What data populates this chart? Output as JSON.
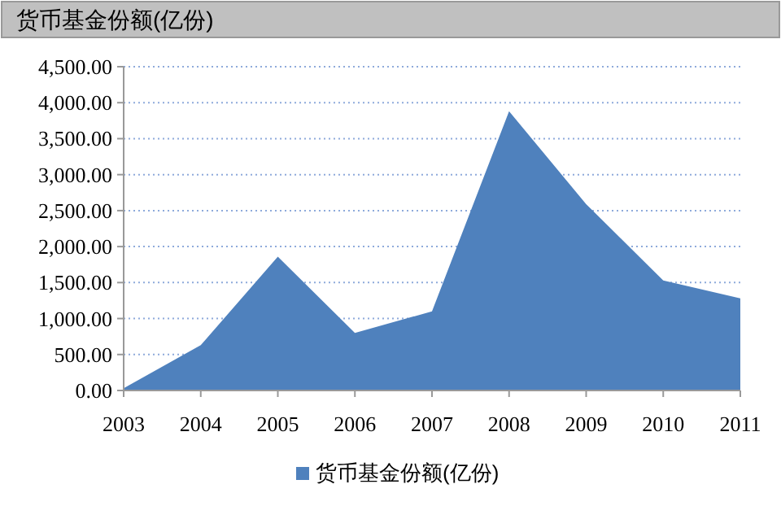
{
  "chart_data": {
    "type": "area",
    "title": "货币基金份额(亿份)",
    "categories": [
      "2003",
      "2004",
      "2005",
      "2006",
      "2007",
      "2008",
      "2009",
      "2010",
      "2011"
    ],
    "series": [
      {
        "name": "货币基金份额(亿份)",
        "color": "#4f81bd",
        "values": [
          30,
          630,
          1860,
          800,
          1100,
          3880,
          2590,
          1530,
          1280
        ]
      }
    ],
    "ylim": [
      0,
      4500
    ],
    "yticks": [
      {
        "value": 0,
        "label": "0.00"
      },
      {
        "value": 500,
        "label": "500.00"
      },
      {
        "value": 1000,
        "label": "1,000.00"
      },
      {
        "value": 1500,
        "label": "1,500.00"
      },
      {
        "value": 2000,
        "label": "2,000.00"
      },
      {
        "value": 2500,
        "label": "2,500.00"
      },
      {
        "value": 3000,
        "label": "3,000.00"
      },
      {
        "value": 3500,
        "label": "3,500.00"
      },
      {
        "value": 4000,
        "label": "4,000.00"
      },
      {
        "value": 4500,
        "label": "4,500.00"
      }
    ],
    "grid": "y",
    "legend": "bottom"
  }
}
